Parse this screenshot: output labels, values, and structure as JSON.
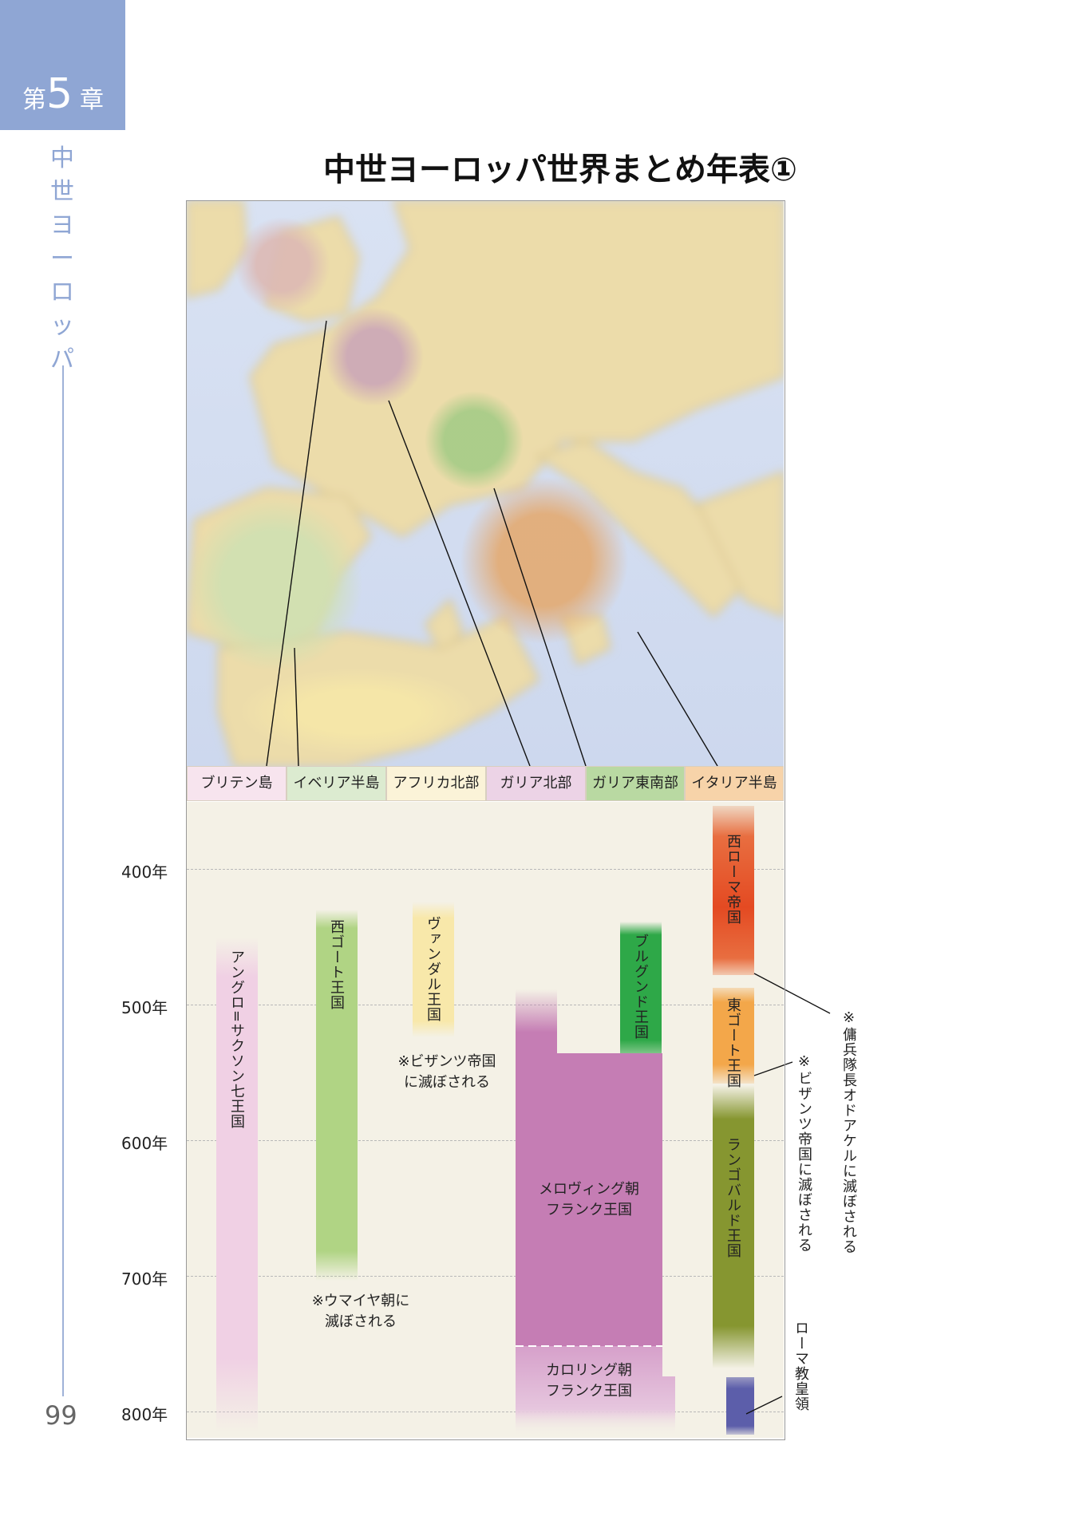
{
  "chapter": {
    "prefix": "第",
    "number": "5",
    "suffix": "章"
  },
  "side_title": [
    "中",
    "世",
    "ヨ",
    "ー",
    "ロ",
    "ッ",
    "パ"
  ],
  "page_number": "99",
  "title": "中世ヨーロッパ世界まとめ年表①",
  "regions": [
    {
      "label": "ブリテン島",
      "color": "#f7e4ee"
    },
    {
      "label": "イベリア半島",
      "color": "#dcebd0"
    },
    {
      "label": "アフリカ北部",
      "color": "#fbf3d8"
    },
    {
      "label": "ガリア北部",
      "color": "#ecd3e6"
    },
    {
      "label": "ガリア東南部",
      "color": "#b9d9a2"
    },
    {
      "label": "イタリア半島",
      "color": "#f7d3a9"
    }
  ],
  "years": [
    "400年",
    "500年",
    "600年",
    "700年",
    "800年"
  ],
  "polities": {
    "anglo": "アングロ=サクソン七王国",
    "west_goth": "西ゴート王国",
    "vandal": "ヴァンダル王国",
    "burgund": "ブルグンド王国",
    "west_rome": "西ローマ帝国",
    "east_goth": "東ゴート王国",
    "langobard": "ランゴバルド王国",
    "merovingian": [
      "メロヴィング朝",
      "フランク王国"
    ],
    "carolingian": [
      "カロリング朝",
      "フランク王国"
    ],
    "papal": "ローマ教皇領"
  },
  "notes": {
    "vandal": [
      "※ビザンツ帝国",
      "に滅ぼされる"
    ],
    "umayyad": [
      "※ウマイヤ朝に",
      "滅ぼされる"
    ],
    "odoacer": "※傭兵隊長オドアケルに滅ぼされる",
    "byzantine": "※ビザンツ帝国に滅ぼされる"
  }
}
